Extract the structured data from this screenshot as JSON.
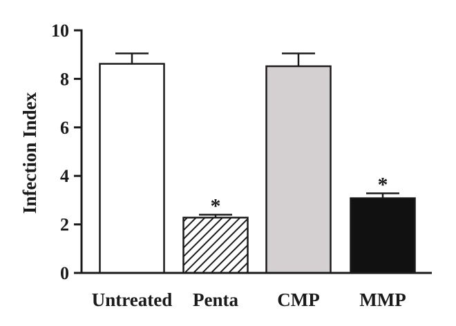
{
  "chart_data": {
    "type": "bar",
    "title": "",
    "xlabel": "",
    "ylabel": "Infection Index",
    "ylim": [
      0,
      10
    ],
    "yticks": [
      "0",
      "2",
      "4",
      "6",
      "8",
      "10"
    ],
    "grid": false,
    "categories": [
      "Untreated",
      "Penta",
      "CMP",
      "MMP"
    ],
    "values": [
      8.62,
      2.28,
      8.52,
      3.08
    ],
    "errors": [
      0.43,
      0.12,
      0.53,
      0.2
    ],
    "significance": [
      "",
      "*",
      "",
      "*"
    ],
    "fills": [
      "white",
      "hatched",
      "#d4cfd0",
      "#111111"
    ]
  }
}
